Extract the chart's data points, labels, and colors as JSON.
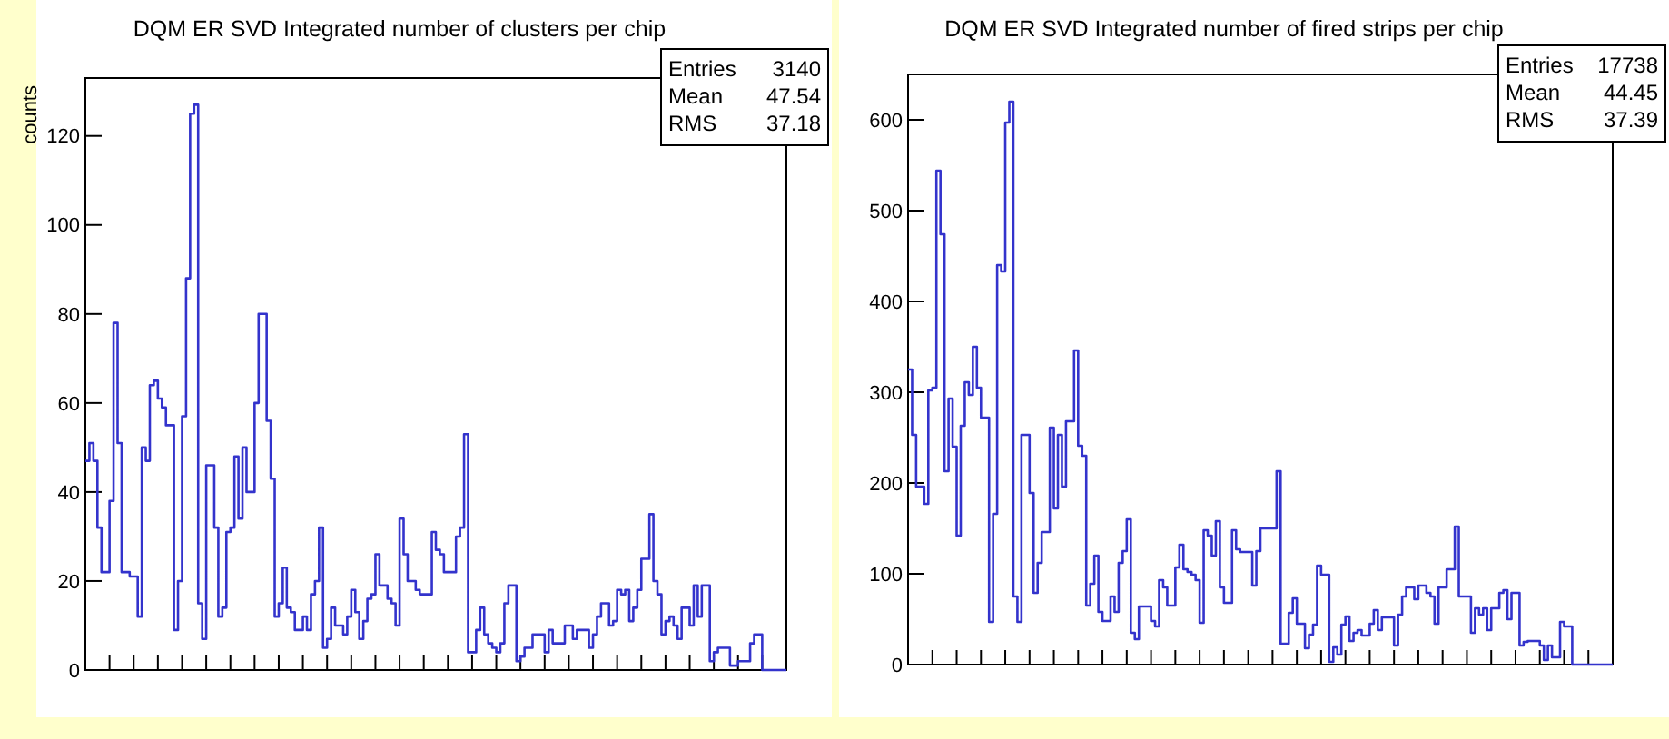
{
  "chart_data": [
    {
      "type": "step",
      "title": "DQM ER SVD Integrated number of clusters per chip",
      "ylabel": "counts",
      "categories": [
        null,
        null,
        null,
        null,
        null,
        null,
        null,
        null,
        null,
        null,
        null,
        null,
        null,
        null,
        null,
        null,
        null,
        null,
        null,
        null,
        null,
        null,
        null,
        null,
        null,
        null,
        null,
        null,
        null,
        null,
        null,
        null,
        null,
        null,
        null,
        null,
        null,
        null,
        null,
        null,
        null,
        null,
        null,
        null,
        null,
        null,
        null,
        null,
        null,
        null,
        null,
        null,
        null,
        null,
        null,
        null,
        null,
        null,
        null,
        null,
        null,
        null,
        null,
        null,
        null,
        null,
        null,
        null,
        null,
        null,
        null,
        null,
        null,
        null,
        null,
        null,
        null,
        null,
        null,
        null,
        null,
        null,
        null,
        null,
        null,
        null,
        null,
        null,
        null,
        null,
        null,
        null,
        null,
        null,
        null,
        null,
        null,
        null,
        null,
        null,
        null,
        null,
        null,
        null,
        null,
        null,
        null,
        null,
        null,
        null,
        null,
        null,
        null,
        null,
        null,
        null,
        null,
        null,
        null,
        null,
        null,
        null,
        null,
        null,
        null,
        null,
        null,
        null,
        null,
        null,
        null,
        null,
        null,
        null,
        null,
        null,
        null,
        null,
        null,
        null,
        null,
        null,
        null,
        null,
        null,
        null,
        null,
        null,
        null,
        null,
        null,
        null,
        null,
        null,
        null,
        null,
        null,
        null,
        null,
        null,
        null,
        null,
        null,
        null,
        null,
        null,
        null,
        null,
        null,
        null,
        null,
        null,
        null,
        null
      ],
      "series": [
        {
          "color": "#3333cc",
          "values": [
            47,
            51,
            47,
            32,
            22,
            22,
            38,
            78,
            51,
            22,
            22,
            21,
            21,
            12,
            50,
            47,
            64,
            65,
            61,
            59,
            55,
            55,
            9,
            20,
            57,
            88,
            125,
            127,
            15,
            7,
            46,
            46,
            32,
            12,
            14,
            31,
            32,
            48,
            34,
            50,
            40,
            40,
            60,
            80,
            80,
            56,
            43,
            12,
            15,
            23,
            14,
            13,
            9,
            9,
            12,
            9,
            17,
            20,
            32,
            5,
            7,
            14,
            10,
            10,
            8,
            12,
            18,
            13,
            7,
            11,
            16,
            17,
            26,
            19,
            19,
            16,
            15,
            10,
            34,
            26,
            20,
            20,
            18,
            17,
            17,
            17,
            31,
            27,
            26,
            22,
            22,
            22,
            30,
            32,
            53,
            4,
            4,
            9,
            14,
            8,
            6,
            5,
            4,
            6,
            15,
            19,
            19,
            2,
            3,
            5,
            5,
            8,
            8,
            8,
            4,
            9,
            6,
            6,
            6,
            10,
            10,
            7,
            9,
            9,
            9,
            5,
            8,
            12,
            15,
            15,
            10,
            11,
            18,
            17,
            18,
            11,
            14,
            18,
            25,
            25,
            35,
            20,
            17,
            8,
            11,
            12,
            10,
            7,
            14,
            14,
            10,
            19,
            12,
            19,
            19,
            2,
            4,
            5,
            5,
            5,
            1,
            1,
            2,
            2,
            2,
            6,
            8,
            8,
            0,
            0,
            0,
            0,
            0,
            0
          ]
        }
      ],
      "ylim": [
        0,
        133
      ],
      "yticks": [
        0,
        20,
        40,
        60,
        80,
        100,
        120
      ],
      "tick_labels": "y",
      "annotations": [
        "Entries 3140",
        "Mean 47.54",
        "RMS 37.18"
      ]
    },
    {
      "type": "step",
      "title": "DQM ER SVD Integrated number of fired strips per chip",
      "categories": [
        null,
        null,
        null,
        null,
        null,
        null,
        null,
        null,
        null,
        null,
        null,
        null,
        null,
        null,
        null,
        null,
        null,
        null,
        null,
        null,
        null,
        null,
        null,
        null,
        null,
        null,
        null,
        null,
        null,
        null,
        null,
        null,
        null,
        null,
        null,
        null,
        null,
        null,
        null,
        null,
        null,
        null,
        null,
        null,
        null,
        null,
        null,
        null,
        null,
        null,
        null,
        null,
        null,
        null,
        null,
        null,
        null,
        null,
        null,
        null,
        null,
        null,
        null,
        null,
        null,
        null,
        null,
        null,
        null,
        null,
        null,
        null,
        null,
        null,
        null,
        null,
        null,
        null,
        null,
        null,
        null,
        null,
        null,
        null,
        null,
        null,
        null,
        null,
        null,
        null,
        null,
        null,
        null,
        null,
        null,
        null,
        null,
        null,
        null,
        null,
        null,
        null,
        null,
        null,
        null,
        null,
        null,
        null,
        null,
        null,
        null,
        null,
        null,
        null,
        null,
        null,
        null,
        null,
        null,
        null,
        null,
        null,
        null,
        null,
        null,
        null,
        null,
        null,
        null,
        null,
        null,
        null,
        null,
        null,
        null,
        null,
        null,
        null,
        null,
        null,
        null,
        null,
        null,
        null,
        null,
        null,
        null,
        null,
        null,
        null,
        null,
        null,
        null,
        null,
        null,
        null,
        null,
        null,
        null,
        null,
        null,
        null,
        null,
        null,
        null,
        null,
        null,
        null,
        null,
        null,
        null,
        null,
        null,
        null
      ],
      "series": [
        {
          "color": "#3333cc",
          "values": [
            325,
            253,
            196,
            196,
            177,
            302,
            305,
            544,
            474,
            213,
            293,
            240,
            142,
            263,
            311,
            297,
            350,
            305,
            272,
            272,
            47,
            166,
            440,
            433,
            597,
            620,
            75,
            47,
            253,
            253,
            189,
            79,
            112,
            146,
            146,
            261,
            172,
            253,
            196,
            268,
            268,
            346,
            241,
            230,
            65,
            89,
            120,
            58,
            48,
            48,
            75,
            58,
            112,
            125,
            160,
            35,
            28,
            64,
            64,
            64,
            48,
            42,
            93,
            85,
            65,
            65,
            107,
            132,
            105,
            102,
            99,
            93,
            46,
            148,
            142,
            120,
            158,
            85,
            68,
            68,
            148,
            127,
            124,
            124,
            124,
            87,
            125,
            150,
            150,
            150,
            150,
            213,
            23,
            23,
            57,
            73,
            45,
            45,
            18,
            33,
            44,
            109,
            99,
            99,
            3,
            19,
            11,
            44,
            53,
            26,
            35,
            38,
            32,
            32,
            45,
            60,
            38,
            52,
            52,
            52,
            21,
            55,
            75,
            85,
            85,
            72,
            87,
            87,
            79,
            75,
            45,
            85,
            85,
            105,
            105,
            152,
            75,
            75,
            75,
            35,
            62,
            55,
            62,
            38,
            62,
            62,
            79,
            82,
            50,
            79,
            79,
            21,
            25,
            26,
            26,
            26,
            21,
            5,
            21,
            8,
            8,
            47,
            42,
            42,
            0,
            0,
            0,
            0,
            0,
            0,
            0,
            0,
            0,
            0
          ]
        }
      ],
      "ylim": [
        0,
        650
      ],
      "yticks": [
        0,
        100,
        200,
        300,
        400,
        500,
        600
      ],
      "tick_labels": "y",
      "annotations": [
        "Entries 17738",
        "Mean 44.45",
        "RMS 37.39"
      ]
    }
  ]
}
